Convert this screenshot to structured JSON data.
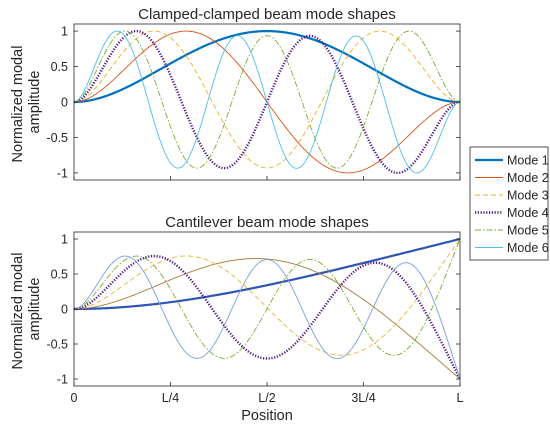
{
  "chart_data": [
    {
      "type": "line",
      "title": "Clamped-clamped beam mode shapes",
      "ylabel": [
        "Normalized modal",
        "amplitude"
      ],
      "xlabel": "",
      "xlim": [
        0,
        1
      ],
      "ylim": [
        -1.1,
        1.1
      ],
      "yticks": [
        1,
        0.5,
        0,
        -0.5,
        -1
      ],
      "ytick_labels": [
        "1",
        "0.5",
        "0",
        "-0.5",
        "-1"
      ],
      "xtick_labels": [],
      "grid": false,
      "series": [
        {
          "name": "Mode 1",
          "beta": [
            4.7300407
          ],
          "max_amplitude": 1.0
        },
        {
          "name": "Mode 2",
          "beta": [
            7.8532046
          ],
          "max_amplitude": 1.0
        },
        {
          "name": "Mode 3",
          "beta": [
            10.9956078
          ],
          "max_amplitude": 1.0
        },
        {
          "name": "Mode 4",
          "beta": [
            14.1371655
          ],
          "max_amplitude": 1.0
        },
        {
          "name": "Mode 5",
          "beta": [
            17.2787597
          ],
          "max_amplitude": 1.0
        },
        {
          "name": "Mode 6",
          "beta": [
            20.4203522
          ],
          "max_amplitude": 1.0
        }
      ]
    },
    {
      "type": "line",
      "title": "Cantilever beam mode shapes",
      "ylabel": [
        "Normalized modal",
        "amplitude"
      ],
      "xlabel": "Position",
      "xlim": [
        0,
        1
      ],
      "ylim": [
        -1.1,
        1.1
      ],
      "yticks": [
        1,
        0.5,
        0,
        -0.5,
        -1
      ],
      "ytick_labels": [
        "1",
        "0.5",
        "0",
        "-0.5",
        "-1"
      ],
      "xticks": [
        0,
        0.25,
        0.5,
        0.75,
        1
      ],
      "xtick_labels": [
        "0",
        "L/4",
        "L/2",
        "3L/4",
        "L"
      ],
      "grid": false,
      "series": [
        {
          "name": "Mode 1",
          "beta": [
            1.8751041
          ],
          "max_amplitude": 1.0
        },
        {
          "name": "Mode 2",
          "beta": [
            4.6940911
          ],
          "max_amplitude": 1.0
        },
        {
          "name": "Mode 3",
          "beta": [
            7.8547574
          ],
          "max_amplitude": 1.0
        },
        {
          "name": "Mode 4",
          "beta": [
            10.9955407
          ],
          "max_amplitude": 1.0
        },
        {
          "name": "Mode 5",
          "beta": [
            14.1371684
          ],
          "max_amplitude": 1.0
        },
        {
          "name": "Mode 6",
          "beta": [
            17.2787596
          ],
          "max_amplitude": 1.0
        }
      ]
    }
  ],
  "legend": {
    "placement": "right",
    "entries": [
      {
        "name": "Mode 1",
        "color": "#0072BD",
        "style": "solid-thick"
      },
      {
        "name": "Mode 2",
        "color": "#D95319",
        "style": "solid"
      },
      {
        "name": "Mode 3",
        "color": "#EDB120",
        "style": "dashed"
      },
      {
        "name": "Mode 4",
        "color": "#4B1784",
        "style": "dotted-thick"
      },
      {
        "name": "Mode 5",
        "color": "#77AC30",
        "style": "dashdot"
      },
      {
        "name": "Mode 6",
        "color": "#4DBEEE",
        "style": "solid"
      }
    ]
  },
  "series_colors_bottom": [
    "#2E54B6",
    "#A67C35",
    "#E8B33A",
    "#4B1784",
    "#77AC30",
    "#7A9DDB"
  ]
}
